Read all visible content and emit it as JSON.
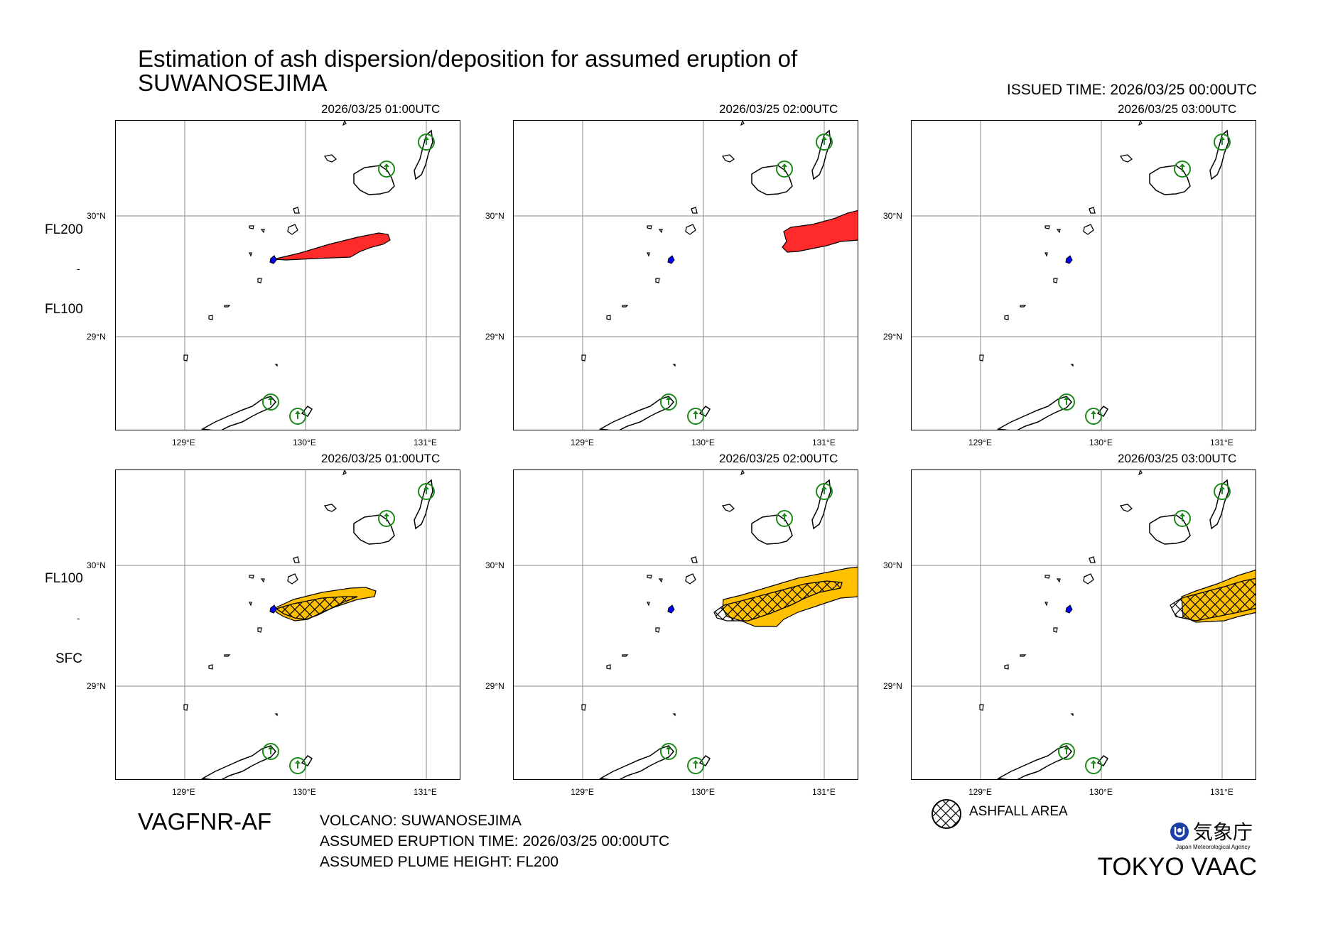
{
  "title": {
    "line1": "Estimation of ash dispersion/deposition for assumed eruption of",
    "line2": "SUWANOSEJIMA"
  },
  "issued_time": "ISSUED TIME: 2026/03/25 00:00UTC",
  "layers": {
    "upper": {
      "top_label": "FL200",
      "mid_label": "-",
      "bottom_label": "FL100"
    },
    "lower": {
      "top_label": "FL100",
      "mid_label": "-",
      "bottom_label": "SFC"
    }
  },
  "panels": {
    "upper": [
      {
        "time": "2026/03/25 01:00UTC"
      },
      {
        "time": "2026/03/25 02:00UTC"
      },
      {
        "time": "2026/03/25 03:00UTC"
      }
    ],
    "lower": [
      {
        "time": "2026/03/25 01:00UTC"
      },
      {
        "time": "2026/03/25 02:00UTC"
      },
      {
        "time": "2026/03/25 03:00UTC"
      }
    ]
  },
  "axes": {
    "lat_labels": [
      "30°N",
      "29°N"
    ],
    "lon_labels": [
      "129°E",
      "130°E",
      "131°E"
    ]
  },
  "footer": {
    "product_code": "VAGFNR-AF",
    "volcano": "VOLCANO: SUWANOSEJIMA",
    "eruption_time": "ASSUMED ERUPTION TIME: 2026/03/25 00:00UTC",
    "plume_height": "ASSUMED PLUME HEIGHT: FL200",
    "legend_label": "ASHFALL AREA",
    "agency_jp": "気象庁",
    "agency_en": "Japan Meteorological Agency",
    "vaac": "TOKYO VAAC"
  },
  "colors": {
    "upper_ash": "#ff2a2a",
    "lower_ash": "#ffc000",
    "volcano": "#0000ff",
    "station_circle": "#1a8a1a",
    "grid": "#888888"
  }
}
